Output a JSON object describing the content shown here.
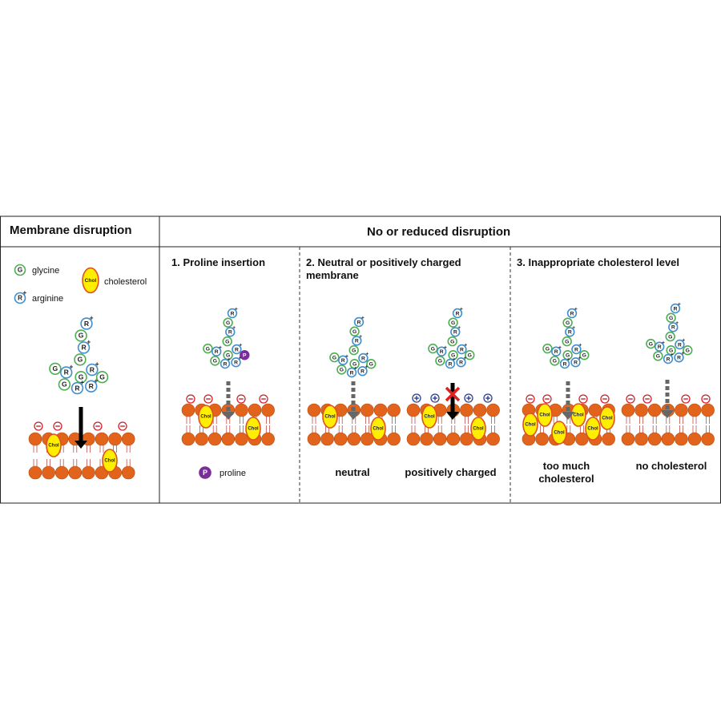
{
  "header": {
    "left_title": "Membrane disruption",
    "right_title": "No or reduced disruption"
  },
  "legend": {
    "glycine_symbol": "G",
    "glycine_label": "glycine",
    "arginine_symbol": "R",
    "arginine_charge": "+",
    "arginine_label": "arginine",
    "cholesterol_symbol": "Chol",
    "cholesterol_label": "cholesterol",
    "proline_symbol": "P",
    "proline_label": "proline"
  },
  "panels": [
    {
      "title": "1. Proline insertion"
    },
    {
      "title": "2. Neutral or positively charged membrane",
      "captions": [
        "neutral",
        "positively charged"
      ]
    },
    {
      "title": "3. Inappropriate cholesterol level",
      "captions": [
        "too much cholesterol",
        "no cholesterol"
      ]
    }
  ]
}
